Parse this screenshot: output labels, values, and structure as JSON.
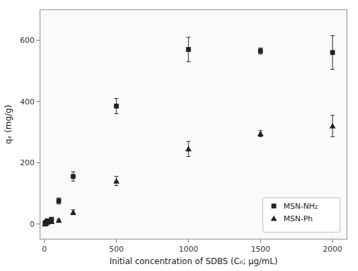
{
  "chart_data": {
    "type": "scatter",
    "x": [
      5,
      10,
      20,
      50,
      100,
      200,
      500,
      1000,
      1500,
      2000
    ],
    "series": [
      {
        "name": "MSN-NH₂",
        "color": "#222222",
        "marker": "square",
        "values": [
          2,
          5,
          10,
          15,
          75,
          155,
          385,
          570,
          565,
          560
        ],
        "errors": [
          1,
          1,
          2,
          3,
          10,
          15,
          25,
          40,
          10,
          55
        ]
      },
      {
        "name": "MSN-Ph",
        "color": "#222222",
        "marker": "triangle",
        "values": [
          0,
          2,
          5,
          8,
          12,
          38,
          140,
          245,
          295,
          320
        ],
        "errors": [
          1,
          1,
          1,
          2,
          3,
          8,
          15,
          25,
          10,
          35
        ]
      }
    ],
    "xlabel": "Initial concentration of SDBS (C₀; μg/mL)",
    "ylabel": "qₑ (mg/g)",
    "xlim": [
      -30,
      2100
    ],
    "ylim": [
      -50,
      700
    ],
    "xticks": [
      0,
      500,
      1000,
      1500,
      2000
    ],
    "yticks": [
      0,
      200,
      400,
      600
    ],
    "grid": false,
    "legend": "lower right"
  }
}
